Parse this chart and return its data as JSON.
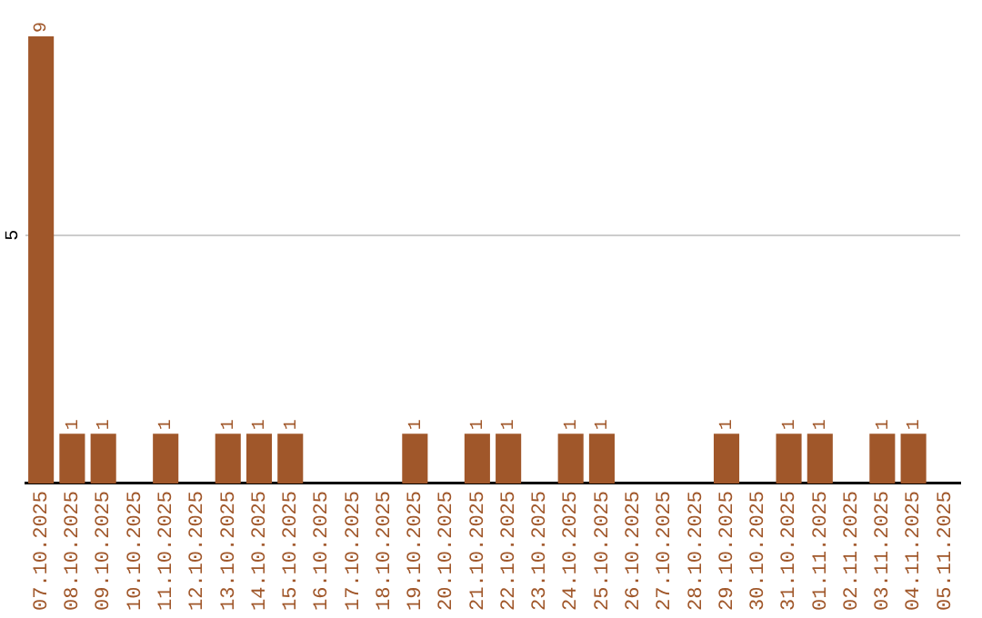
{
  "chart_data": {
    "type": "bar",
    "categories": [
      "07.10.2025",
      "08.10.2025",
      "09.10.2025",
      "10.10.2025",
      "11.10.2025",
      "12.10.2025",
      "13.10.2025",
      "14.10.2025",
      "15.10.2025",
      "16.10.2025",
      "17.10.2025",
      "18.10.2025",
      "19.10.2025",
      "20.10.2025",
      "21.10.2025",
      "22.10.2025",
      "23.10.2025",
      "24.10.2025",
      "25.10.2025",
      "26.10.2025",
      "27.10.2025",
      "28.10.2025",
      "29.10.2025",
      "30.10.2025",
      "31.10.2025",
      "01.11.2025",
      "02.11.2025",
      "03.11.2025",
      "04.11.2025",
      "05.11.2025"
    ],
    "values": [
      9,
      1,
      1,
      0,
      1,
      0,
      1,
      1,
      1,
      0,
      0,
      0,
      1,
      0,
      1,
      1,
      0,
      1,
      1,
      0,
      0,
      0,
      1,
      0,
      1,
      1,
      0,
      1,
      1,
      0
    ],
    "value_labels": [
      "9",
      "1",
      "1",
      null,
      "1",
      null,
      "1",
      "1",
      "1",
      null,
      null,
      null,
      "1",
      null,
      "1",
      "1",
      null,
      "1",
      "1",
      null,
      null,
      null,
      "1",
      null,
      "1",
      "1",
      null,
      "1",
      "1",
      null
    ],
    "color": "#a0572a",
    "ylim": [
      0,
      9
    ],
    "yticks": [
      5
    ],
    "grid": "y",
    "legend": false
  }
}
